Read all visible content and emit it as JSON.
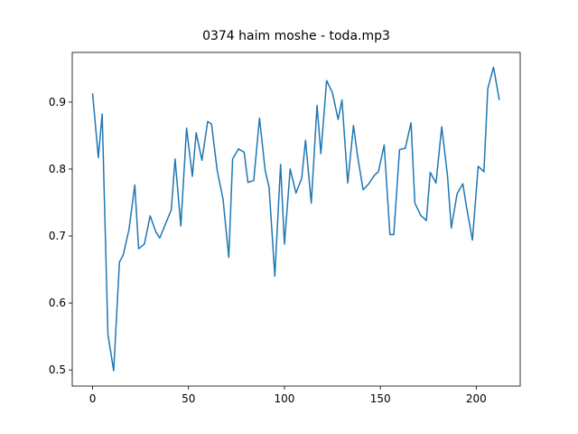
{
  "chart_data": {
    "type": "line",
    "title": "0374 haim moshe - toda.mp3",
    "x": [
      0,
      3,
      5,
      8,
      11,
      14,
      16,
      19,
      22,
      24,
      27,
      30,
      33,
      35,
      38,
      41,
      43,
      46,
      49,
      52,
      54,
      57,
      60,
      62,
      65,
      68,
      71,
      73,
      76,
      79,
      81,
      84,
      87,
      90,
      92,
      95,
      98,
      100,
      103,
      106,
      109,
      111,
      114,
      117,
      119,
      122,
      125,
      128,
      130,
      133,
      136,
      138,
      141,
      144,
      147,
      149,
      152,
      155,
      157,
      160,
      163,
      166,
      168,
      171,
      174,
      176,
      179,
      182,
      185,
      187,
      190,
      193,
      195,
      198,
      201,
      204,
      206,
      209,
      212
    ],
    "series": [
      {
        "name": "score",
        "color": "#1f77b4",
        "values": [
          0.913,
          0.817,
          0.882,
          0.553,
          0.499,
          0.661,
          0.672,
          0.71,
          0.776,
          0.681,
          0.688,
          0.73,
          0.706,
          0.697,
          0.718,
          0.739,
          0.815,
          0.715,
          0.861,
          0.789,
          0.854,
          0.813,
          0.871,
          0.867,
          0.797,
          0.755,
          0.668,
          0.815,
          0.83,
          0.825,
          0.78,
          0.783,
          0.876,
          0.797,
          0.773,
          0.64,
          0.807,
          0.688,
          0.8,
          0.764,
          0.786,
          0.843,
          0.749,
          0.895,
          0.823,
          0.932,
          0.914,
          0.874,
          0.903,
          0.779,
          0.865,
          0.822,
          0.769,
          0.778,
          0.791,
          0.796,
          0.836,
          0.702,
          0.702,
          0.829,
          0.831,
          0.869,
          0.749,
          0.731,
          0.723,
          0.795,
          0.779,
          0.863,
          0.79,
          0.712,
          0.763,
          0.778,
          0.742,
          0.694,
          0.804,
          0.796,
          0.92,
          0.952,
          0.903
        ]
      }
    ],
    "xlim": [
      -10.6,
      222.9
    ],
    "ylim": [
      0.476,
      0.974
    ],
    "xticks": [
      0,
      50,
      100,
      150,
      200
    ],
    "yticks": [
      0.5,
      0.6,
      0.7,
      0.8,
      0.9
    ],
    "grid": false
  }
}
